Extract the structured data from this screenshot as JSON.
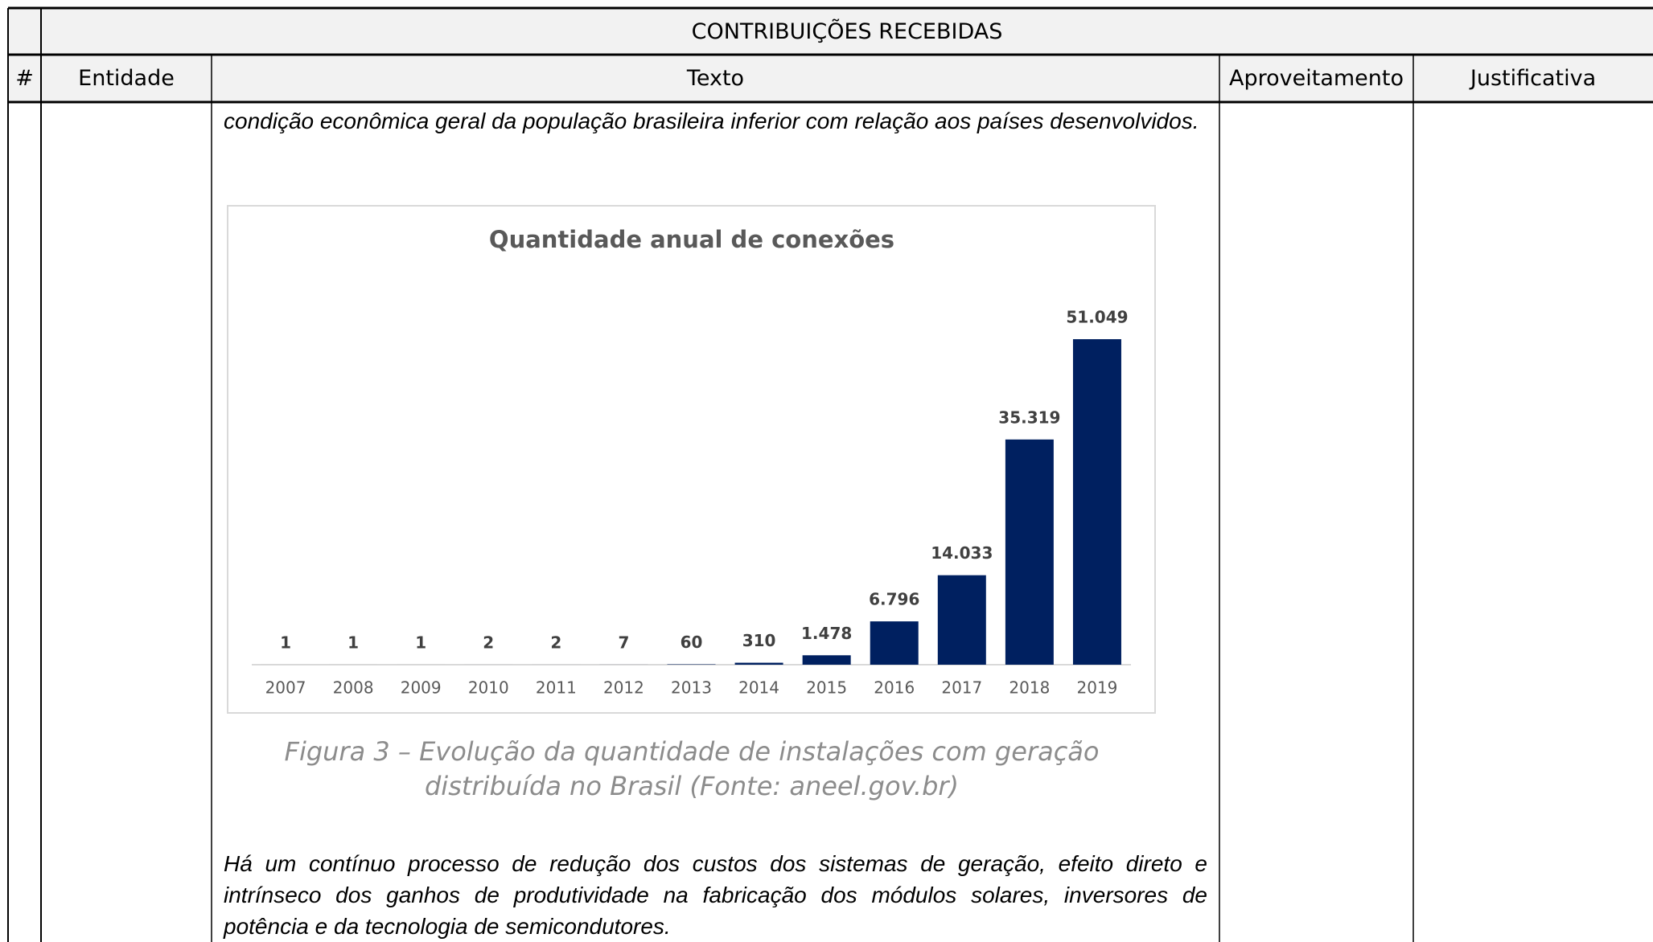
{
  "table": {
    "title": "CONTRIBUIÇÕES RECEBIDAS",
    "columns": [
      "#",
      "Entidade",
      "Texto",
      "Aproveitamento",
      "Justificativa"
    ],
    "text": {
      "paragraphs": [
        "condição econômica geral da população brasileira inferior com relação aos países desenvolvidos.",
        "Há um contínuo processo de redução dos custos dos sistemas de geração, efeito direto e intrínseco dos ganhos de produtividade na fabricação dos módulos solares, inversores de potência e da tecnologia de semicondutores."
      ],
      "figure": {
        "chart_data": {
          "type": "bar",
          "title": "Quantidade anual de conexões",
          "categories": [
            "2007",
            "2008",
            "2009",
            "2010",
            "2011",
            "2012",
            "2013",
            "2014",
            "2015",
            "2016",
            "2017",
            "2018",
            "2019"
          ],
          "values": [
            1,
            1,
            1,
            2,
            2,
            7,
            60,
            310,
            1478,
            6796,
            14033,
            35319,
            51049
          ],
          "value_labels": [
            "1",
            "1",
            "1",
            "2",
            "2",
            "7",
            "60",
            "310",
            "1.478",
            "6.796",
            "14.033",
            "35.319",
            "51.049"
          ],
          "color": "#002060"
        },
        "caption": [
          "Figura 3 – Evolução da quantidade de instalações com geração",
          "distribuída no Brasil (Fonte: aneel.gov.br)"
        ]
      }
    }
  }
}
